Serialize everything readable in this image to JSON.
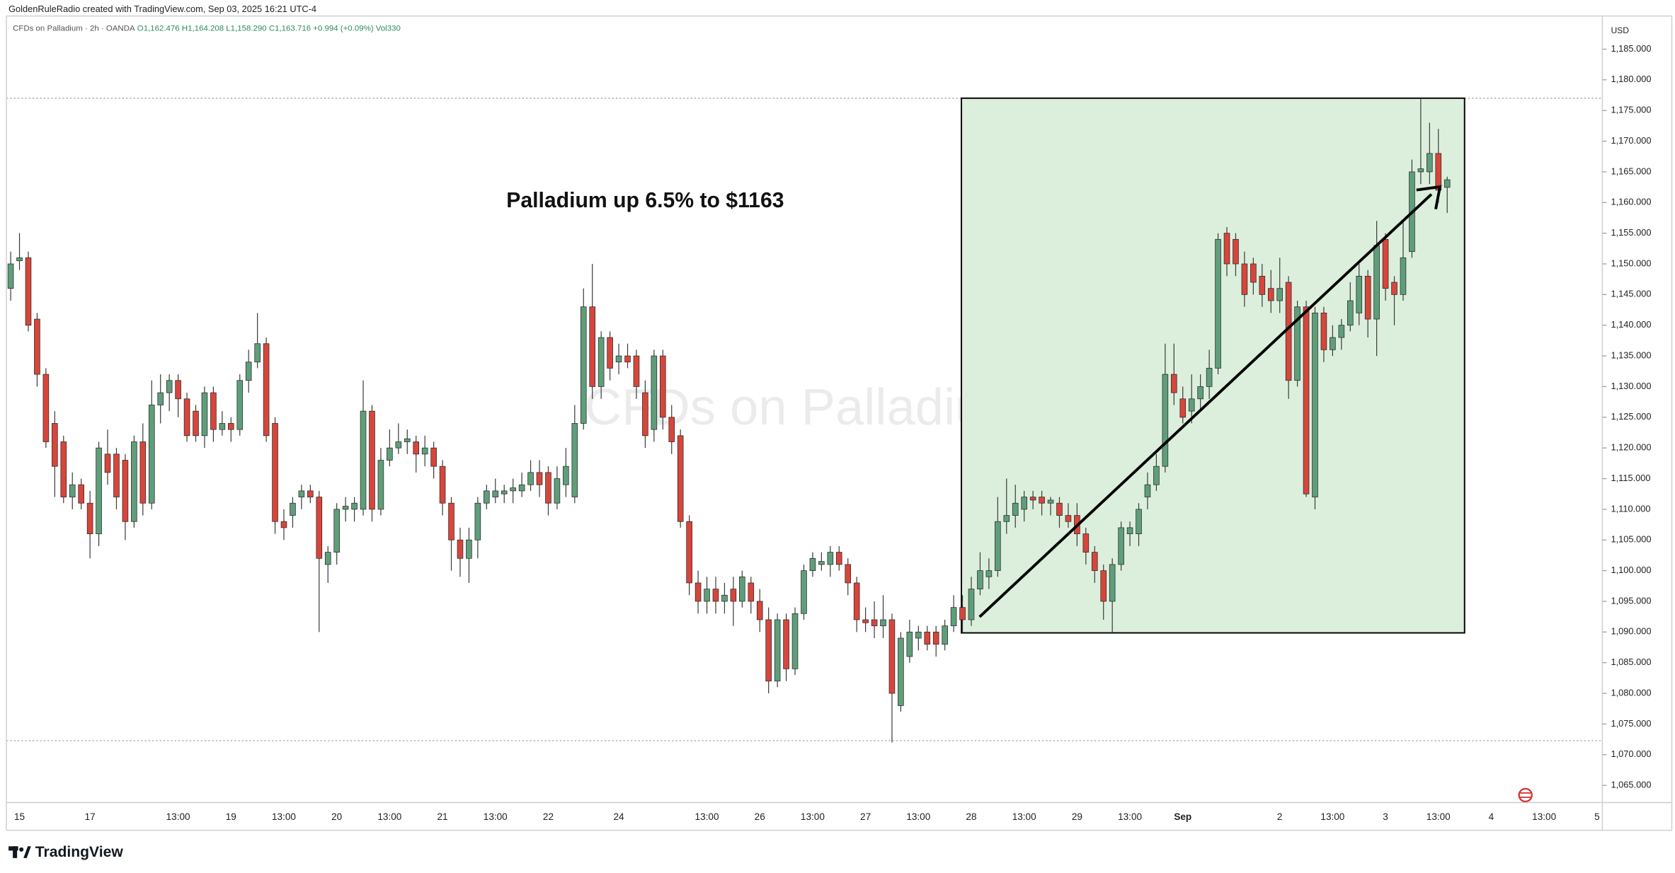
{
  "header": {
    "credit": "GoldenRuleRadio created with TradingView.com, Sep 03, 2025 16:21 UTC-4",
    "symbol": "CFDs on Palladium · 2h · OANDA",
    "open": "O1,162.476",
    "high": "H1,164.208",
    "low": "L1,158.290",
    "close": "C1,163.716",
    "change": "+0.994 (+0.09%)",
    "volume": "Vol330"
  },
  "brand": "TradingView",
  "chart_data": {
    "type": "candlestick",
    "watermark": "CFDs on Palladium",
    "annotation": "Palladium up 6.5% to $1163",
    "currency": "USD",
    "up_color": "#5f9e7b",
    "down_color": "#d8453b",
    "wick_color": "#3a3a3a",
    "grid": false,
    "ylim": [
      1062.2,
      1190.4
    ],
    "yticks": [
      {
        "value": 1065,
        "label": "1,065.000"
      },
      {
        "value": 1070,
        "label": "1,070.000"
      },
      {
        "value": 1075,
        "label": "1,075.000"
      },
      {
        "value": 1080,
        "label": "1,080.000"
      },
      {
        "value": 1085,
        "label": "1,085.000"
      },
      {
        "value": 1090,
        "label": "1,090.000"
      },
      {
        "value": 1095,
        "label": "1,095.000"
      },
      {
        "value": 1100,
        "label": "1,100.000"
      },
      {
        "value": 1105,
        "label": "1,105.000"
      },
      {
        "value": 1110,
        "label": "1,110.000"
      },
      {
        "value": 1115,
        "label": "1,115.000"
      },
      {
        "value": 1120,
        "label": "1,120.000"
      },
      {
        "value": 1125,
        "label": "1,125.000"
      },
      {
        "value": 1130,
        "label": "1,130.000"
      },
      {
        "value": 1135,
        "label": "1,135.000"
      },
      {
        "value": 1140,
        "label": "1,140.000"
      },
      {
        "value": 1145,
        "label": "1,145.000"
      },
      {
        "value": 1150,
        "label": "1,150.000"
      },
      {
        "value": 1155,
        "label": "1,155.000"
      },
      {
        "value": 1160,
        "label": "1,160.000"
      },
      {
        "value": 1165,
        "label": "1,165.000"
      },
      {
        "value": 1170,
        "label": "1,170.000"
      },
      {
        "value": 1175,
        "label": "1,175.000"
      },
      {
        "value": 1180,
        "label": "1,180.000"
      },
      {
        "value": 1185,
        "label": "1,185.000"
      }
    ],
    "categories": [
      null,
      "15",
      null,
      null,
      null,
      null,
      null,
      null,
      null,
      "17",
      null,
      null,
      null,
      null,
      null,
      null,
      null,
      null,
      null,
      "13:00",
      null,
      null,
      null,
      null,
      null,
      "19",
      null,
      null,
      null,
      null,
      null,
      "13:00",
      null,
      null,
      null,
      null,
      null,
      "20",
      null,
      null,
      null,
      null,
      null,
      "13:00",
      null,
      null,
      null,
      null,
      null,
      "21",
      null,
      null,
      null,
      null,
      null,
      "13:00",
      null,
      null,
      null,
      null,
      null,
      "22",
      null,
      null,
      null,
      null,
      null,
      null,
      null,
      "24",
      null,
      null,
      null,
      null,
      null,
      null,
      null,
      null,
      null,
      "13:00",
      null,
      null,
      null,
      null,
      null,
      "26",
      null,
      null,
      null,
      null,
      null,
      "13:00",
      null,
      null,
      null,
      null,
      null,
      "27",
      null,
      null,
      null,
      null,
      null,
      "13:00",
      null,
      null,
      null,
      null,
      null,
      "28",
      null,
      null,
      null,
      null,
      null,
      "13:00",
      null,
      null,
      null,
      null,
      null,
      "29",
      null,
      null,
      null,
      null,
      null,
      "13:00",
      null,
      null,
      null,
      null,
      null,
      "Sep",
      null,
      null,
      null,
      null,
      null,
      null,
      null,
      null,
      null,
      null,
      "2",
      null,
      null,
      null,
      null,
      null,
      "13:00",
      null,
      null,
      null,
      null,
      null,
      "3",
      null,
      null,
      null,
      null,
      null,
      "13:00",
      null,
      null,
      null,
      null,
      null,
      "4",
      null,
      null,
      null,
      null,
      null,
      "13:00",
      null,
      null,
      null,
      null,
      null,
      "5"
    ],
    "ohlc": [
      [
        1146,
        1152,
        1144,
        1150
      ],
      [
        1150.5,
        1155,
        1149,
        1151
      ],
      [
        1151,
        1152,
        1139,
        1140
      ],
      [
        1141,
        1142,
        1130,
        1132
      ],
      [
        1132,
        1133,
        1120,
        1121
      ],
      [
        1124,
        1126,
        1112,
        1117
      ],
      [
        1121,
        1122,
        1111,
        1112
      ],
      [
        1112,
        1116,
        1110,
        1114
      ],
      [
        1114,
        1115,
        1110,
        1111
      ],
      [
        1111,
        1113,
        1102,
        1106
      ],
      [
        1106,
        1121,
        1104,
        1120
      ],
      [
        1119,
        1123,
        1114,
        1116
      ],
      [
        1119,
        1120,
        1110,
        1112
      ],
      [
        1118,
        1119,
        1105,
        1108
      ],
      [
        1108,
        1122,
        1107,
        1121
      ],
      [
        1121,
        1124,
        1109,
        1111
      ],
      [
        1111,
        1131,
        1110,
        1127
      ],
      [
        1127,
        1132,
        1124,
        1129
      ],
      [
        1129,
        1132,
        1126,
        1131
      ],
      [
        1131,
        1132,
        1125,
        1128
      ],
      [
        1128,
        1129,
        1121,
        1122
      ],
      [
        1126,
        1127,
        1121,
        1122
      ],
      [
        1122,
        1130,
        1120,
        1129
      ],
      [
        1129,
        1130,
        1121,
        1123
      ],
      [
        1123,
        1126,
        1122,
        1124
      ],
      [
        1124,
        1125,
        1121,
        1123
      ],
      [
        1123,
        1132,
        1122,
        1131
      ],
      [
        1131,
        1136,
        1129,
        1134
      ],
      [
        1134,
        1142,
        1133,
        1137
      ],
      [
        1137,
        1138,
        1121,
        1122
      ],
      [
        1124,
        1125,
        1106,
        1108
      ],
      [
        1108,
        1110,
        1105,
        1107
      ],
      [
        1109,
        1112,
        1107,
        1111
      ],
      [
        1112,
        1114,
        1110,
        1113
      ],
      [
        1113,
        1114,
        1111,
        1112
      ],
      [
        1112,
        1113,
        1090,
        1102
      ],
      [
        1101,
        1104,
        1098,
        1103
      ],
      [
        1103,
        1111,
        1101,
        1110
      ],
      [
        1110,
        1112,
        1108,
        1110.5
      ],
      [
        1110,
        1112,
        1108,
        1111
      ],
      [
        1110,
        1131,
        1109,
        1126
      ],
      [
        1126,
        1127,
        1108,
        1110
      ],
      [
        1110,
        1120,
        1109,
        1118
      ],
      [
        1118,
        1123,
        1117,
        1120
      ],
      [
        1120,
        1124,
        1119,
        1121
      ],
      [
        1121,
        1123,
        1119,
        1121.5
      ],
      [
        1121,
        1122,
        1116,
        1119
      ],
      [
        1119,
        1122,
        1117,
        1120
      ],
      [
        1120,
        1121,
        1115,
        1117
      ],
      [
        1117,
        1118,
        1109,
        1111
      ],
      [
        1111,
        1112,
        1100,
        1105
      ],
      [
        1105,
        1107,
        1099,
        1102
      ],
      [
        1102,
        1107,
        1098,
        1105
      ],
      [
        1105,
        1112,
        1102,
        1111
      ],
      [
        1111,
        1114,
        1110,
        1113
      ],
      [
        1112,
        1115,
        1111,
        1113
      ],
      [
        1112.5,
        1114,
        1111,
        1113
      ],
      [
        1113,
        1115,
        1111,
        1113.5
      ],
      [
        1113,
        1116,
        1112,
        1114
      ],
      [
        1114,
        1118,
        1113,
        1116
      ],
      [
        1116,
        1118,
        1112,
        1114
      ],
      [
        1116,
        1117,
        1109,
        1111
      ],
      [
        1111,
        1117,
        1110,
        1115
      ],
      [
        1114,
        1120,
        1112,
        1117
      ],
      [
        1112,
        1127,
        1111,
        1124
      ],
      [
        1124,
        1146,
        1123,
        1143
      ],
      [
        1143,
        1150,
        1128,
        1130
      ],
      [
        1130,
        1139,
        1128,
        1138
      ],
      [
        1138,
        1139,
        1131,
        1133
      ],
      [
        1134,
        1137,
        1132,
        1135
      ],
      [
        1135,
        1137,
        1133,
        1134
      ],
      [
        1135,
        1136,
        1128,
        1130
      ],
      [
        1129,
        1131,
        1120,
        1122
      ],
      [
        1123,
        1136,
        1121,
        1135
      ],
      [
        1135,
        1136,
        1123,
        1125
      ],
      [
        1125,
        1127,
        1119,
        1121
      ],
      [
        1122,
        1123,
        1107,
        1108
      ],
      [
        1108,
        1109,
        1096,
        1098
      ],
      [
        1098,
        1100,
        1093,
        1095
      ],
      [
        1095,
        1099,
        1093,
        1097
      ],
      [
        1097,
        1099,
        1093,
        1095
      ],
      [
        1095,
        1098,
        1093,
        1096
      ],
      [
        1097,
        1099,
        1091,
        1095
      ],
      [
        1095,
        1100,
        1094,
        1099
      ],
      [
        1098,
        1099,
        1093,
        1095
      ],
      [
        1095,
        1097,
        1090,
        1092
      ],
      [
        1092,
        1094,
        1080,
        1082
      ],
      [
        1082,
        1093,
        1081,
        1092
      ],
      [
        1092,
        1093,
        1082,
        1084
      ],
      [
        1084,
        1094,
        1083,
        1093
      ],
      [
        1093,
        1101,
        1092,
        1100
      ],
      [
        1100,
        1103,
        1099,
        1102
      ],
      [
        1101,
        1103,
        1100,
        1101.5
      ],
      [
        1101,
        1104,
        1099,
        1103
      ],
      [
        1103,
        1104,
        1100,
        1101
      ],
      [
        1101,
        1102,
        1096,
        1098
      ],
      [
        1098,
        1099,
        1090,
        1092
      ],
      [
        1092,
        1094,
        1090,
        1091.5
      ],
      [
        1092,
        1095,
        1089,
        1091
      ],
      [
        1091,
        1096,
        1089,
        1092
      ],
      [
        1092,
        1093,
        1072,
        1080
      ],
      [
        1078,
        1090,
        1077,
        1089
      ],
      [
        1086,
        1092,
        1085,
        1090
      ],
      [
        1089,
        1091,
        1087,
        1090
      ],
      [
        1090,
        1091,
        1087,
        1088
      ],
      [
        1090,
        1091,
        1086,
        1088
      ],
      [
        1088,
        1092,
        1087,
        1091
      ],
      [
        1091,
        1096,
        1090,
        1094
      ],
      [
        1094,
        1096,
        1090,
        1092
      ],
      [
        1092,
        1099,
        1091,
        1097
      ],
      [
        1097,
        1103,
        1096,
        1100
      ],
      [
        1099,
        1102,
        1097,
        1100
      ],
      [
        1100,
        1112,
        1099,
        1108
      ],
      [
        1108,
        1115,
        1106,
        1109
      ],
      [
        1109,
        1114,
        1107,
        1111
      ],
      [
        1110,
        1113,
        1108,
        1112
      ],
      [
        1112,
        1113,
        1110,
        1111.5
      ],
      [
        1112,
        1113,
        1109,
        1111
      ],
      [
        1111,
        1112,
        1109,
        1111.5
      ],
      [
        1111,
        1112,
        1107,
        1109
      ],
      [
        1109,
        1111,
        1107,
        1108
      ],
      [
        1109,
        1111,
        1104,
        1106
      ],
      [
        1106,
        1107,
        1101,
        1103
      ],
      [
        1103,
        1104,
        1098,
        1100
      ],
      [
        1100,
        1101,
        1092,
        1095
      ],
      [
        1095,
        1102,
        1090,
        1101
      ],
      [
        1101,
        1108,
        1100,
        1107
      ],
      [
        1106,
        1108,
        1104,
        1107
      ],
      [
        1106,
        1111,
        1104,
        1110
      ],
      [
        1112,
        1116,
        1110,
        1114
      ],
      [
        1114,
        1119,
        1113,
        1117
      ],
      [
        1117,
        1137,
        1116,
        1132
      ],
      [
        1132,
        1137,
        1127,
        1129
      ],
      [
        1128,
        1130,
        1124,
        1125
      ],
      [
        1126,
        1132,
        1124,
        1128
      ],
      [
        1128,
        1132,
        1126,
        1130
      ],
      [
        1130,
        1136,
        1128,
        1133
      ],
      [
        1133,
        1155,
        1132,
        1154
      ],
      [
        1155,
        1156,
        1148,
        1150
      ],
      [
        1154,
        1155,
        1148,
        1150
      ],
      [
        1150,
        1152,
        1143,
        1145
      ],
      [
        1150,
        1151,
        1145,
        1147
      ],
      [
        1148,
        1150,
        1143,
        1145
      ],
      [
        1146,
        1149,
        1142,
        1144
      ],
      [
        1144,
        1151,
        1142,
        1146
      ],
      [
        1147,
        1148,
        1128,
        1131
      ],
      [
        1131,
        1144,
        1130,
        1143
      ],
      [
        1143,
        1144,
        1112,
        1112.5
      ],
      [
        1112,
        1143,
        1110,
        1142
      ],
      [
        1142,
        1143,
        1134,
        1136
      ],
      [
        1136,
        1140,
        1135,
        1138
      ],
      [
        1138,
        1141,
        1136,
        1140
      ],
      [
        1140,
        1147,
        1139,
        1144
      ],
      [
        1142,
        1150,
        1140,
        1148
      ],
      [
        1148,
        1149,
        1138,
        1141
      ],
      [
        1141,
        1157,
        1135,
        1153
      ],
      [
        1154,
        1155,
        1144,
        1146
      ],
      [
        1147,
        1148,
        1140,
        1145
      ],
      [
        1145,
        1157,
        1144,
        1151
      ],
      [
        1152,
        1167,
        1151,
        1165
      ],
      [
        1165,
        1177,
        1163,
        1165.5
      ],
      [
        1165,
        1173,
        1163,
        1168
      ],
      [
        1168,
        1172,
        1160,
        1162
      ],
      [
        1162.476,
        1164.208,
        1158.29,
        1163.716
      ],
      null,
      null,
      null,
      null,
      null,
      null,
      null,
      null,
      null,
      null,
      null,
      null,
      null,
      null,
      null,
      null,
      null
    ]
  }
}
